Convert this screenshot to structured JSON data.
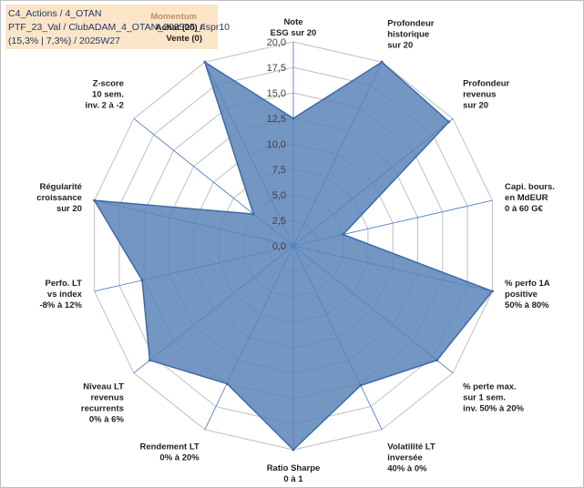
{
  "header": {
    "line1": "C4_Actions / 4_OTAN",
    "line2": "PTF_23_Val / ClubADAM_4_OTAN_202505_4spr10",
    "line3": "(15,3% | 7,3%) / 2025W27"
  },
  "colors": {
    "fill": "#5b84b8",
    "stroke": "#3c6aa8",
    "grid": "#bfbfbf",
    "spoke": "#4472c4",
    "header_bg": "#fbe5c8",
    "momentum": "#c09060"
  },
  "chart_data": {
    "type": "radar",
    "grid": true,
    "rlim": [
      0,
      20
    ],
    "ticks": [
      "0,0",
      "2,5",
      "5,0",
      "7,5",
      "10,0",
      "12,5",
      "15,0",
      "17,5",
      "20,0"
    ],
    "axes": [
      {
        "lines": [
          "Note",
          "ESG sur 20"
        ],
        "value": 12.5
      },
      {
        "lines": [
          "Profondeur",
          "historique",
          "sur 20"
        ],
        "value": 20
      },
      {
        "lines": [
          "Profondeur",
          "revenus",
          "sur 20"
        ],
        "value": 19.5
      },
      {
        "lines": [
          "Capi. bours.",
          "en MdEUR",
          "0 à 60 G€"
        ],
        "value": 5.0
      },
      {
        "lines": [
          "% perfo 1A",
          "positive",
          "50% à 80%"
        ],
        "value": 20
      },
      {
        "lines": [
          "% perte max.",
          "sur 1 sem.",
          "inv. 50% à 20%"
        ],
        "value": 18.0
      },
      {
        "lines": [
          "Volatilité LT",
          "inversée",
          "40% à 0%"
        ],
        "value": 15.2
      },
      {
        "lines": [
          "Ratio Sharpe",
          "0 à 1"
        ],
        "value": 20
      },
      {
        "lines": [
          "Rendement LT",
          "0% à 20%"
        ],
        "value": 15.0
      },
      {
        "lines": [
          "Niveau LT",
          "revenus",
          "recurrents",
          "0% à 6%"
        ],
        "value": 18.0
      },
      {
        "lines": [
          "Perfo. LT",
          "vs index",
          "-8% à 12%"
        ],
        "value": 15.2
      },
      {
        "lines": [
          "Régularité",
          "croissance",
          "sur 20"
        ],
        "value": 20
      },
      {
        "lines": [
          "Z-score",
          "10 sem.",
          "inv. 2 à -2"
        ],
        "value": 5.0
      },
      {
        "lines": [
          "Momentum",
          "Achat (20) /",
          "Vente (0)"
        ],
        "value": 20
      }
    ]
  }
}
